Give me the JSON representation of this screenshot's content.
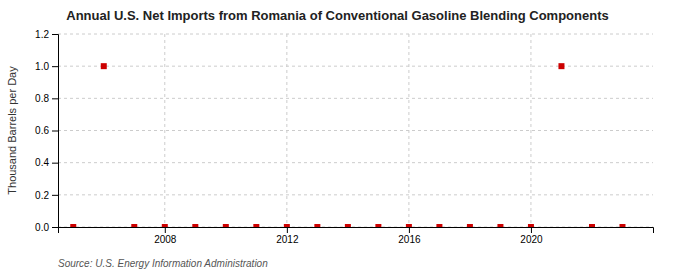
{
  "chart_data": {
    "type": "scatter",
    "title": "Annual U.S. Net Imports from Romania of Conventional Gasoline Blending Components",
    "y_label": "Thousand Barrels per Day",
    "annotations": [
      "Source: U.S. Energy Information Administration"
    ],
    "x": [
      2005,
      2006,
      2007,
      2008,
      2009,
      2010,
      2011,
      2012,
      2013,
      2014,
      2015,
      2016,
      2017,
      2018,
      2019,
      2020,
      2021,
      2022,
      2023
    ],
    "values": [
      0.0,
      1.0,
      0.0,
      0.0,
      0.0,
      0.0,
      0.0,
      0.0,
      0.0,
      0.0,
      0.0,
      0.0,
      0.0,
      0.0,
      0.0,
      0.0,
      1.0,
      0.0,
      0.0
    ],
    "color": "#cc0000",
    "marker": "square",
    "xlim": [
      2004.5,
      2024.0
    ],
    "xticks": [
      2008,
      2012,
      2016,
      2020
    ],
    "ylim": [
      0.0,
      1.2
    ],
    "yticks": [
      {
        "value": 0.0,
        "label": "0.0"
      },
      0.2,
      0.4,
      0.6,
      0.8,
      {
        "value": 1.0,
        "label": "1.0"
      },
      1.2
    ],
    "grid": true
  }
}
